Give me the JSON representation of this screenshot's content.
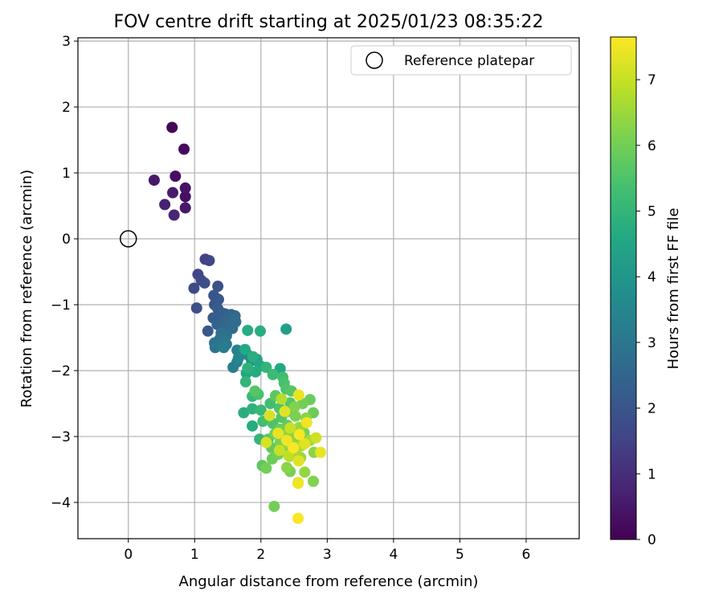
{
  "chart_data": {
    "type": "scatter",
    "title": "FOV centre drift starting at 2025/01/23 08:35:22",
    "xlabel": "Angular distance from reference (arcmin)",
    "ylabel": "Rotation from reference (arcmin)",
    "xlim": [
      -0.76,
      6.8
    ],
    "ylim": [
      -4.55,
      3.05
    ],
    "x_ticks": [
      "0",
      "1",
      "2",
      "3",
      "4",
      "5",
      "6"
    ],
    "y_ticks": [
      "3",
      "2",
      "1",
      "0",
      "−1",
      "−2",
      "−3",
      "−4"
    ],
    "grid": true,
    "legend": {
      "position": "top-right",
      "entries": [
        "Reference platepar"
      ]
    },
    "reference_point": {
      "name": "Reference platepar",
      "x": 0,
      "y": 0
    },
    "colorbar": {
      "label": "Hours from first FF file",
      "min": 0,
      "max": 7.65,
      "ticks": [
        "0",
        "1",
        "2",
        "3",
        "4",
        "5",
        "6",
        "7"
      ],
      "colormap": "viridis"
    },
    "points": [
      {
        "x": 0.66,
        "y": 1.69,
        "h": 0.1
      },
      {
        "x": 0.84,
        "y": 1.36,
        "h": 0.2
      },
      {
        "x": 0.71,
        "y": 0.95,
        "h": 0.3
      },
      {
        "x": 0.39,
        "y": 0.89,
        "h": 0.5
      },
      {
        "x": 0.86,
        "y": 0.77,
        "h": 0.4
      },
      {
        "x": 0.67,
        "y": 0.7,
        "h": 0.6
      },
      {
        "x": 0.86,
        "y": 0.64,
        "h": 0.3
      },
      {
        "x": 0.55,
        "y": 0.52,
        "h": 0.7
      },
      {
        "x": 0.86,
        "y": 0.47,
        "h": 0.5
      },
      {
        "x": 0.69,
        "y": 0.36,
        "h": 0.8
      },
      {
        "x": 1.16,
        "y": -0.31,
        "h": 1.5
      },
      {
        "x": 1.22,
        "y": -0.33,
        "h": 1.6
      },
      {
        "x": 1.05,
        "y": -0.54,
        "h": 1.6
      },
      {
        "x": 1.1,
        "y": -0.63,
        "h": 1.7
      },
      {
        "x": 1.15,
        "y": -0.67,
        "h": 1.8
      },
      {
        "x": 0.99,
        "y": -0.75,
        "h": 1.7
      },
      {
        "x": 1.35,
        "y": -0.72,
        "h": 1.9
      },
      {
        "x": 1.29,
        "y": -0.86,
        "h": 2.0
      },
      {
        "x": 1.36,
        "y": -0.92,
        "h": 2.1
      },
      {
        "x": 1.3,
        "y": -1.0,
        "h": 2.0
      },
      {
        "x": 1.03,
        "y": -1.05,
        "h": 1.8
      },
      {
        "x": 1.35,
        "y": -1.06,
        "h": 2.2
      },
      {
        "x": 1.42,
        "y": -1.13,
        "h": 2.3
      },
      {
        "x": 1.46,
        "y": -1.14,
        "h": 2.2
      },
      {
        "x": 1.55,
        "y": -1.15,
        "h": 2.4
      },
      {
        "x": 1.61,
        "y": -1.17,
        "h": 2.6
      },
      {
        "x": 1.28,
        "y": -1.2,
        "h": 2.2
      },
      {
        "x": 1.48,
        "y": -1.24,
        "h": 2.5
      },
      {
        "x": 1.4,
        "y": -1.26,
        "h": 2.3
      },
      {
        "x": 1.62,
        "y": -1.26,
        "h": 2.7
      },
      {
        "x": 1.52,
        "y": -1.3,
        "h": 2.6
      },
      {
        "x": 1.34,
        "y": -1.3,
        "h": 2.4
      },
      {
        "x": 1.45,
        "y": -1.35,
        "h": 2.5
      },
      {
        "x": 1.57,
        "y": -1.36,
        "h": 2.7
      },
      {
        "x": 1.2,
        "y": -1.4,
        "h": 2.1
      },
      {
        "x": 1.4,
        "y": -1.43,
        "h": 2.8
      },
      {
        "x": 1.48,
        "y": -1.47,
        "h": 2.9
      },
      {
        "x": 1.38,
        "y": -1.52,
        "h": 2.8
      },
      {
        "x": 1.3,
        "y": -1.58,
        "h": 2.9
      },
      {
        "x": 1.44,
        "y": -1.57,
        "h": 3.0
      },
      {
        "x": 1.48,
        "y": -1.6,
        "h": 3.1
      },
      {
        "x": 1.31,
        "y": -1.65,
        "h": 3.0
      },
      {
        "x": 1.44,
        "y": -1.65,
        "h": 3.2
      },
      {
        "x": 1.64,
        "y": -1.69,
        "h": 3.4
      },
      {
        "x": 1.71,
        "y": -1.73,
        "h": 3.5
      },
      {
        "x": 1.8,
        "y": -1.76,
        "h": 3.6
      },
      {
        "x": 1.66,
        "y": -1.81,
        "h": 3.5
      },
      {
        "x": 1.86,
        "y": -1.85,
        "h": 3.8
      },
      {
        "x": 1.64,
        "y": -1.87,
        "h": 3.3
      },
      {
        "x": 1.58,
        "y": -1.95,
        "h": 3.2
      },
      {
        "x": 1.8,
        "y": -1.39,
        "h": 4.7
      },
      {
        "x": 1.99,
        "y": -1.4,
        "h": 4.8
      },
      {
        "x": 2.38,
        "y": -1.37,
        "h": 4.3
      },
      {
        "x": 1.76,
        "y": -1.68,
        "h": 4.6
      },
      {
        "x": 1.88,
        "y": -1.79,
        "h": 4.8
      },
      {
        "x": 1.94,
        "y": -1.83,
        "h": 4.4
      },
      {
        "x": 1.99,
        "y": -1.93,
        "h": 4.6
      },
      {
        "x": 1.8,
        "y": -1.96,
        "h": 4.9
      },
      {
        "x": 2.08,
        "y": -1.95,
        "h": 5.0
      },
      {
        "x": 2.29,
        "y": -1.97,
        "h": 4.6
      },
      {
        "x": 1.92,
        "y": -2.02,
        "h": 4.7
      },
      {
        "x": 1.78,
        "y": -2.04,
        "h": 4.5
      },
      {
        "x": 2.18,
        "y": -2.06,
        "h": 5.2
      },
      {
        "x": 2.33,
        "y": -2.1,
        "h": 5.3
      },
      {
        "x": 1.77,
        "y": -2.17,
        "h": 5.0
      },
      {
        "x": 2.35,
        "y": -2.19,
        "h": 5.4
      },
      {
        "x": 2.38,
        "y": -2.28,
        "h": 5.5
      },
      {
        "x": 1.91,
        "y": -2.31,
        "h": 5.6
      },
      {
        "x": 2.46,
        "y": -2.31,
        "h": 5.6
      },
      {
        "x": 1.96,
        "y": -2.36,
        "h": 5.4
      },
      {
        "x": 2.22,
        "y": -2.38,
        "h": 5.7
      },
      {
        "x": 1.87,
        "y": -2.39,
        "h": 5.1
      },
      {
        "x": 2.31,
        "y": -2.43,
        "h": 6.8
      },
      {
        "x": 2.74,
        "y": -2.44,
        "h": 5.9
      },
      {
        "x": 2.14,
        "y": -2.5,
        "h": 5.3
      },
      {
        "x": 2.44,
        "y": -2.49,
        "h": 5.6
      },
      {
        "x": 2.63,
        "y": -2.5,
        "h": 6.0
      },
      {
        "x": 2.51,
        "y": -2.55,
        "h": 6.2
      },
      {
        "x": 1.87,
        "y": -2.58,
        "h": 4.9
      },
      {
        "x": 2.0,
        "y": -2.6,
        "h": 5.1
      },
      {
        "x": 2.28,
        "y": -2.57,
        "h": 5.5
      },
      {
        "x": 2.41,
        "y": -2.62,
        "h": 5.8
      },
      {
        "x": 1.74,
        "y": -2.64,
        "h": 4.8
      },
      {
        "x": 2.79,
        "y": -2.64,
        "h": 5.9
      },
      {
        "x": 2.52,
        "y": -2.69,
        "h": 6.1
      },
      {
        "x": 2.31,
        "y": -2.71,
        "h": 5.6
      },
      {
        "x": 2.68,
        "y": -2.72,
        "h": 6.3
      },
      {
        "x": 2.03,
        "y": -2.77,
        "h": 5.3
      },
      {
        "x": 2.18,
        "y": -2.8,
        "h": 5.5
      },
      {
        "x": 2.4,
        "y": -2.83,
        "h": 5.8
      },
      {
        "x": 1.87,
        "y": -2.84,
        "h": 4.7
      },
      {
        "x": 2.58,
        "y": -2.86,
        "h": 6.5
      },
      {
        "x": 2.28,
        "y": -2.89,
        "h": 5.9
      },
      {
        "x": 2.47,
        "y": -2.92,
        "h": 6.2
      },
      {
        "x": 2.65,
        "y": -2.94,
        "h": 6.1
      },
      {
        "x": 2.21,
        "y": -2.96,
        "h": 6.0
      },
      {
        "x": 2.36,
        "y": -3.0,
        "h": 6.4
      },
      {
        "x": 2.52,
        "y": -3.02,
        "h": 6.3
      },
      {
        "x": 2.11,
        "y": -3.04,
        "h": 5.6
      },
      {
        "x": 1.98,
        "y": -3.04,
        "h": 5.0
      },
      {
        "x": 2.74,
        "y": -3.06,
        "h": 6.6
      },
      {
        "x": 2.29,
        "y": -3.09,
        "h": 6.1
      },
      {
        "x": 2.44,
        "y": -3.11,
        "h": 6.5
      },
      {
        "x": 2.61,
        "y": -3.14,
        "h": 6.7
      },
      {
        "x": 2.16,
        "y": -3.17,
        "h": 5.8
      },
      {
        "x": 2.35,
        "y": -3.2,
        "h": 6.2
      },
      {
        "x": 2.53,
        "y": -3.22,
        "h": 6.6
      },
      {
        "x": 2.8,
        "y": -3.24,
        "h": 6.3
      },
      {
        "x": 2.26,
        "y": -3.27,
        "h": 6.0
      },
      {
        "x": 2.43,
        "y": -3.3,
        "h": 6.4
      },
      {
        "x": 2.17,
        "y": -3.34,
        "h": 5.9
      },
      {
        "x": 2.6,
        "y": -3.32,
        "h": 6.5
      },
      {
        "x": 2.02,
        "y": -3.44,
        "h": 5.7
      },
      {
        "x": 2.08,
        "y": -3.48,
        "h": 6.0
      },
      {
        "x": 2.39,
        "y": -3.47,
        "h": 6.3
      },
      {
        "x": 2.44,
        "y": -3.53,
        "h": 6.1
      },
      {
        "x": 2.66,
        "y": -3.54,
        "h": 6.4
      },
      {
        "x": 2.79,
        "y": -3.68,
        "h": 6.2
      },
      {
        "x": 2.56,
        "y": -3.7,
        "h": 6.8
      },
      {
        "x": 2.2,
        "y": -4.06,
        "h": 6.0
      },
      {
        "x": 2.57,
        "y": -2.37,
        "h": 7.4
      },
      {
        "x": 2.36,
        "y": -2.62,
        "h": 7.3
      },
      {
        "x": 2.13,
        "y": -2.68,
        "h": 7.2
      },
      {
        "x": 2.69,
        "y": -2.79,
        "h": 7.5
      },
      {
        "x": 2.44,
        "y": -2.87,
        "h": 7.0
      },
      {
        "x": 2.26,
        "y": -2.95,
        "h": 7.4
      },
      {
        "x": 2.58,
        "y": -2.97,
        "h": 7.6
      },
      {
        "x": 2.83,
        "y": -3.02,
        "h": 7.1
      },
      {
        "x": 2.08,
        "y": -3.09,
        "h": 7.2
      },
      {
        "x": 2.39,
        "y": -3.06,
        "h": 7.5
      },
      {
        "x": 2.66,
        "y": -3.11,
        "h": 7.3
      },
      {
        "x": 2.49,
        "y": -3.17,
        "h": 7.6
      },
      {
        "x": 2.28,
        "y": -3.21,
        "h": 7.0
      },
      {
        "x": 2.9,
        "y": -3.24,
        "h": 7.4
      },
      {
        "x": 2.57,
        "y": -3.37,
        "h": 7.3
      },
      {
        "x": 2.42,
        "y": -3.29,
        "h": 6.9
      },
      {
        "x": 2.56,
        "y": -3.71,
        "h": 7.5
      },
      {
        "x": 2.56,
        "y": -4.24,
        "h": 7.6
      }
    ]
  }
}
